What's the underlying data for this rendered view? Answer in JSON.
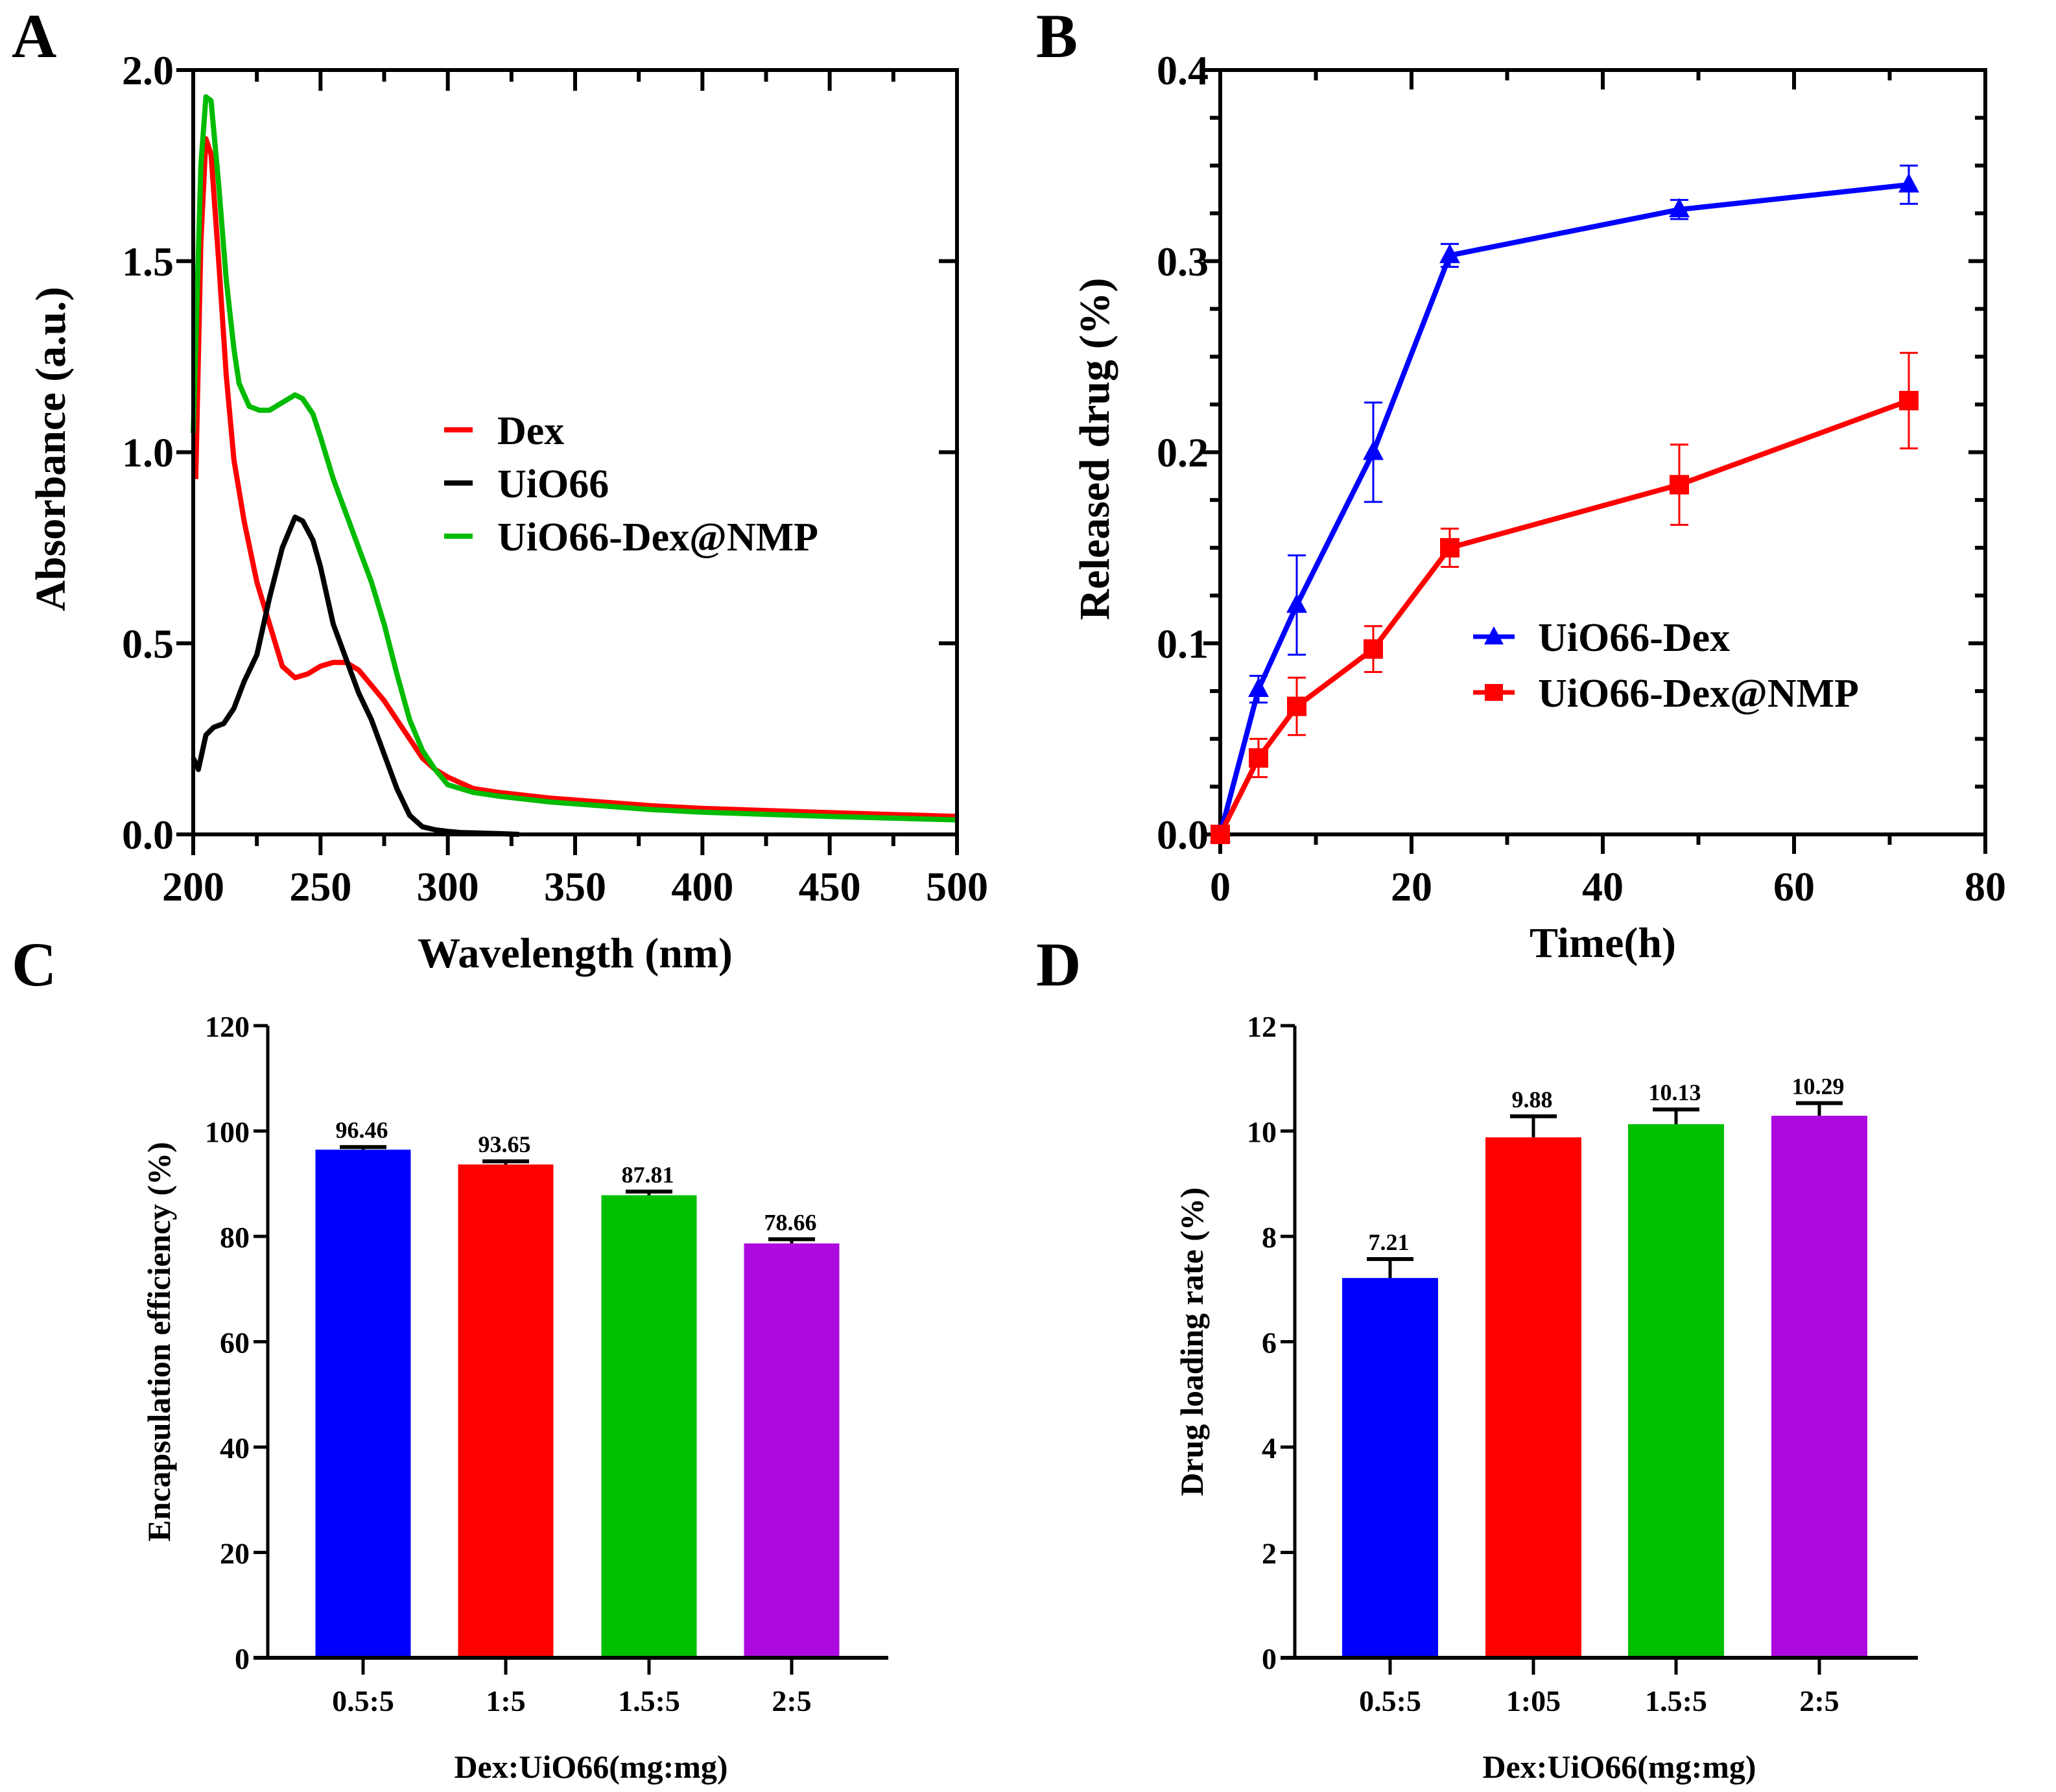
{
  "figure": {
    "panels": [
      "A",
      "B",
      "C",
      "D"
    ]
  },
  "chart_data": [
    {
      "panel": "A",
      "type": "line",
      "title": "",
      "xlabel": "Wavelength (nm)",
      "ylabel": "Absorbance (a.u.)",
      "xlim": [
        200,
        500
      ],
      "ylim": [
        0,
        2.0
      ],
      "xticks": [
        200,
        250,
        300,
        350,
        400,
        450,
        500
      ],
      "xtick_labels": [
        "200",
        "250",
        "300",
        "350",
        "400",
        "450",
        "500"
      ],
      "yticks": [
        0,
        0.5,
        1.0,
        1.5,
        2.0
      ],
      "ytick_labels": [
        "0.0",
        "0.5",
        "1.0",
        "1.5",
        "2.0"
      ],
      "grid": false,
      "legend_position": "center-right",
      "series": [
        {
          "name": "Dex",
          "color": "#ff0000",
          "x": [
            201,
            203,
            205,
            207,
            210,
            213,
            216,
            220,
            225,
            230,
            235,
            240,
            245,
            250,
            255,
            260,
            265,
            270,
            275,
            280,
            285,
            290,
            295,
            300,
            310,
            320,
            340,
            360,
            380,
            400,
            450,
            500
          ],
          "y": [
            0.93,
            1.55,
            1.82,
            1.78,
            1.5,
            1.2,
            0.98,
            0.82,
            0.66,
            0.55,
            0.44,
            0.41,
            0.42,
            0.44,
            0.45,
            0.45,
            0.43,
            0.39,
            0.35,
            0.3,
            0.25,
            0.2,
            0.17,
            0.15,
            0.12,
            0.11,
            0.095,
            0.085,
            0.075,
            0.068,
            0.057,
            0.047
          ]
        },
        {
          "name": "UiO66",
          "color": "#000000",
          "x": [
            200,
            202,
            205,
            208,
            212,
            216,
            220,
            225,
            230,
            235,
            240,
            243,
            247,
            250,
            255,
            260,
            265,
            270,
            275,
            280,
            285,
            290,
            295,
            300,
            305,
            310,
            320,
            328
          ],
          "y": [
            0.2,
            0.17,
            0.26,
            0.28,
            0.29,
            0.33,
            0.4,
            0.47,
            0.62,
            0.75,
            0.83,
            0.82,
            0.77,
            0.7,
            0.55,
            0.46,
            0.37,
            0.3,
            0.21,
            0.12,
            0.05,
            0.02,
            0.012,
            0.008,
            0.005,
            0.004,
            0.002,
            0.0
          ]
        },
        {
          "name": "UiO66-Dex@NMP",
          "color": "#00bb00",
          "x": [
            200,
            203,
            205,
            207,
            210,
            213,
            216,
            218,
            222,
            226,
            230,
            235,
            240,
            243,
            247,
            250,
            255,
            260,
            265,
            270,
            275,
            280,
            285,
            290,
            295,
            300,
            310,
            320,
            340,
            360,
            380,
            400,
            450,
            500
          ],
          "y": [
            1.05,
            1.75,
            1.93,
            1.92,
            1.7,
            1.45,
            1.27,
            1.18,
            1.12,
            1.11,
            1.11,
            1.13,
            1.15,
            1.14,
            1.1,
            1.04,
            0.93,
            0.84,
            0.75,
            0.66,
            0.55,
            0.42,
            0.3,
            0.22,
            0.17,
            0.13,
            0.11,
            0.1,
            0.085,
            0.075,
            0.065,
            0.058,
            0.047,
            0.038
          ]
        }
      ]
    },
    {
      "panel": "B",
      "type": "line",
      "title": "",
      "xlabel": "Time(h)",
      "ylabel": "Released drug (%)",
      "xlim": [
        0,
        80
      ],
      "ylim": [
        0,
        0.4
      ],
      "xticks": [
        0,
        20,
        40,
        60,
        80
      ],
      "xtick_labels": [
        "0",
        "20",
        "40",
        "60",
        "80"
      ],
      "yticks": [
        0,
        0.1,
        0.2,
        0.3,
        0.4
      ],
      "ytick_labels": [
        "0.0",
        "0.1",
        "0.2",
        "0.3",
        "0.4"
      ],
      "grid": false,
      "legend_position": "center-right",
      "x": [
        0,
        4,
        8,
        16,
        24,
        48,
        72
      ],
      "series": [
        {
          "name": "UiO66-Dex",
          "color": "#0000ff",
          "marker": "triangle",
          "values": [
            0.0,
            0.076,
            0.12,
            0.2,
            0.303,
            0.327,
            0.34
          ],
          "errors": [
            0.0,
            0.007,
            0.026,
            0.026,
            0.006,
            0.005,
            0.01
          ]
        },
        {
          "name": "UiO66-Dex@NMP",
          "color": "#ff0000",
          "marker": "square",
          "values": [
            0.0,
            0.04,
            0.067,
            0.097,
            0.15,
            0.183,
            0.227
          ],
          "errors": [
            0.0,
            0.01,
            0.015,
            0.012,
            0.01,
            0.021,
            0.025
          ]
        }
      ]
    },
    {
      "panel": "C",
      "type": "bar",
      "title": "",
      "xlabel": "Dex:UiO66(mg:mg)",
      "ylabel": "Encapsulation efficiency (%)",
      "ylim": [
        0,
        120
      ],
      "yticks": [
        0,
        20,
        40,
        60,
        80,
        100,
        120
      ],
      "ytick_labels": [
        "0",
        "20",
        "40",
        "60",
        "80",
        "100",
        "120"
      ],
      "categories": [
        "0.5:5",
        "1:5",
        "1.5:5",
        "2:5"
      ],
      "values": [
        96.46,
        93.65,
        87.81,
        78.66
      ],
      "value_labels": [
        "96.46",
        "93.65",
        "87.81",
        "78.66"
      ],
      "errors": [
        0.5,
        0.6,
        0.7,
        0.8
      ],
      "colors": [
        "#0000ff",
        "#ff0000",
        "#00c000",
        "#ae0ae0"
      ],
      "grid": false
    },
    {
      "panel": "D",
      "type": "bar",
      "title": "",
      "xlabel": "Dex:UiO66(mg:mg)",
      "ylabel": "Drug loading rate (%)",
      "ylim": [
        0,
        12
      ],
      "yticks": [
        0,
        2,
        4,
        6,
        8,
        10,
        12
      ],
      "ytick_labels": [
        "0",
        "2",
        "4",
        "6",
        "8",
        "10",
        "12"
      ],
      "categories": [
        "0.5:5",
        "1:05",
        "1.5:5",
        "2:5"
      ],
      "values": [
        7.21,
        9.88,
        10.13,
        10.29
      ],
      "value_labels": [
        "7.21",
        "9.88",
        "10.13",
        "10.29"
      ],
      "errors": [
        0.36,
        0.4,
        0.28,
        0.24
      ],
      "colors": [
        "#0000ff",
        "#ff0000",
        "#00c000",
        "#ae0ae0"
      ],
      "grid": false
    }
  ]
}
